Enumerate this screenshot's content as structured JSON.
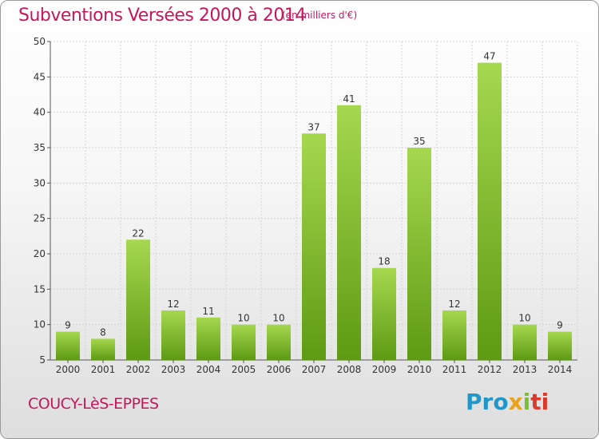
{
  "header": {
    "title": "Subventions Versées 2000 à 2014",
    "subtitle": "(en milliers d'€)"
  },
  "footer": {
    "place": "COUCY-LèS-EPPES",
    "logo": {
      "parts": [
        "Pro",
        "x",
        "i",
        "ti"
      ],
      "text": "Proxiti"
    }
  },
  "colors": {
    "title": "#c2185b",
    "bar_top": "#a6d84f",
    "bar_bottom": "#5e9a14",
    "grid": "#d0d0d0"
  },
  "chart_data": {
    "type": "bar",
    "categories": [
      "2000",
      "2001",
      "2002",
      "2003",
      "2004",
      "2005",
      "2006",
      "2007",
      "2008",
      "2009",
      "2010",
      "2011",
      "2012",
      "2013",
      "2014"
    ],
    "values": [
      9,
      8,
      22,
      12,
      11,
      10,
      10,
      37,
      41,
      18,
      35,
      12,
      47,
      10,
      9
    ],
    "title": "Subventions Versées 2000 à 2014",
    "subtitle": "(en milliers d'€)",
    "xlabel": "",
    "ylabel": "",
    "ylim": [
      5,
      50
    ],
    "yticks": [
      5,
      10,
      15,
      20,
      25,
      30,
      35,
      40,
      45,
      50
    ],
    "grid": true,
    "data_labels": true
  }
}
